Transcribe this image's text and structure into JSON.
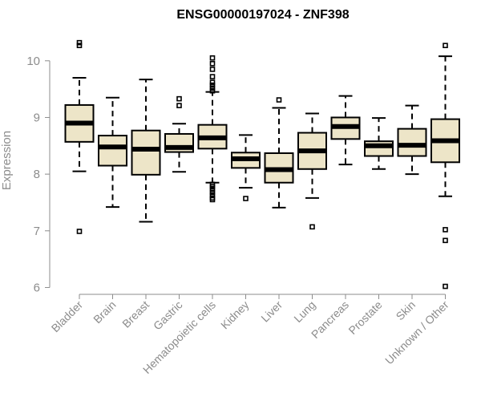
{
  "chart_data": {
    "type": "box",
    "title": "ENSG00000197024 - ZNF398",
    "xlabel": "",
    "ylabel": "Expression",
    "ylim": [
      5.95,
      10.45
    ],
    "yticks": [
      6,
      7,
      8,
      9,
      10
    ],
    "box_fill": "#ede5c8",
    "box_stroke": "#000000",
    "categories": [
      "Bladder",
      "Brain",
      "Breast",
      "Gastric",
      "Hematopoietic cells",
      "Kidney",
      "Liver",
      "Lung",
      "Pancreas",
      "Prostate",
      "Skin",
      "Unknown / Other"
    ],
    "boxes": [
      {
        "whisker_low": 8.05,
        "q1": 8.57,
        "median": 8.9,
        "q3": 9.22,
        "whisker_high": 9.7,
        "outliers": [
          10.27,
          10.32,
          6.99
        ]
      },
      {
        "whisker_low": 7.42,
        "q1": 8.15,
        "median": 8.48,
        "q3": 8.68,
        "whisker_high": 9.35,
        "outliers": []
      },
      {
        "whisker_low": 7.16,
        "q1": 7.99,
        "median": 8.44,
        "q3": 8.77,
        "whisker_high": 9.67,
        "outliers": []
      },
      {
        "whisker_low": 8.04,
        "q1": 8.39,
        "median": 8.47,
        "q3": 8.71,
        "whisker_high": 8.89,
        "outliers": [
          9.21,
          9.33
        ]
      },
      {
        "whisker_low": 7.85,
        "q1": 8.45,
        "median": 8.64,
        "q3": 8.87,
        "whisker_high": 9.45,
        "outliers": [
          10.05,
          9.95,
          9.85,
          9.72,
          9.62,
          9.57,
          9.52,
          9.47,
          7.82,
          7.78,
          7.73,
          7.68,
          7.63,
          7.58,
          7.55
        ]
      },
      {
        "whisker_low": 7.76,
        "q1": 8.11,
        "median": 8.27,
        "q3": 8.38,
        "whisker_high": 8.69,
        "outliers": [
          7.57
        ]
      },
      {
        "whisker_low": 7.41,
        "q1": 7.85,
        "median": 8.08,
        "q3": 8.37,
        "whisker_high": 9.17,
        "outliers": [
          9.31
        ]
      },
      {
        "whisker_low": 7.58,
        "q1": 8.09,
        "median": 8.41,
        "q3": 8.73,
        "whisker_high": 9.07,
        "outliers": [
          7.07
        ]
      },
      {
        "whisker_low": 8.17,
        "q1": 8.62,
        "median": 8.84,
        "q3": 9.0,
        "whisker_high": 9.38,
        "outliers": []
      },
      {
        "whisker_low": 8.09,
        "q1": 8.32,
        "median": 8.5,
        "q3": 8.58,
        "whisker_high": 8.99,
        "outliers": []
      },
      {
        "whisker_low": 8.0,
        "q1": 8.32,
        "median": 8.51,
        "q3": 8.8,
        "whisker_high": 9.21,
        "outliers": []
      },
      {
        "whisker_low": 7.61,
        "q1": 8.21,
        "median": 8.59,
        "q3": 8.97,
        "whisker_high": 10.08,
        "outliers": [
          10.27,
          7.02,
          6.83,
          6.02
        ]
      }
    ]
  }
}
